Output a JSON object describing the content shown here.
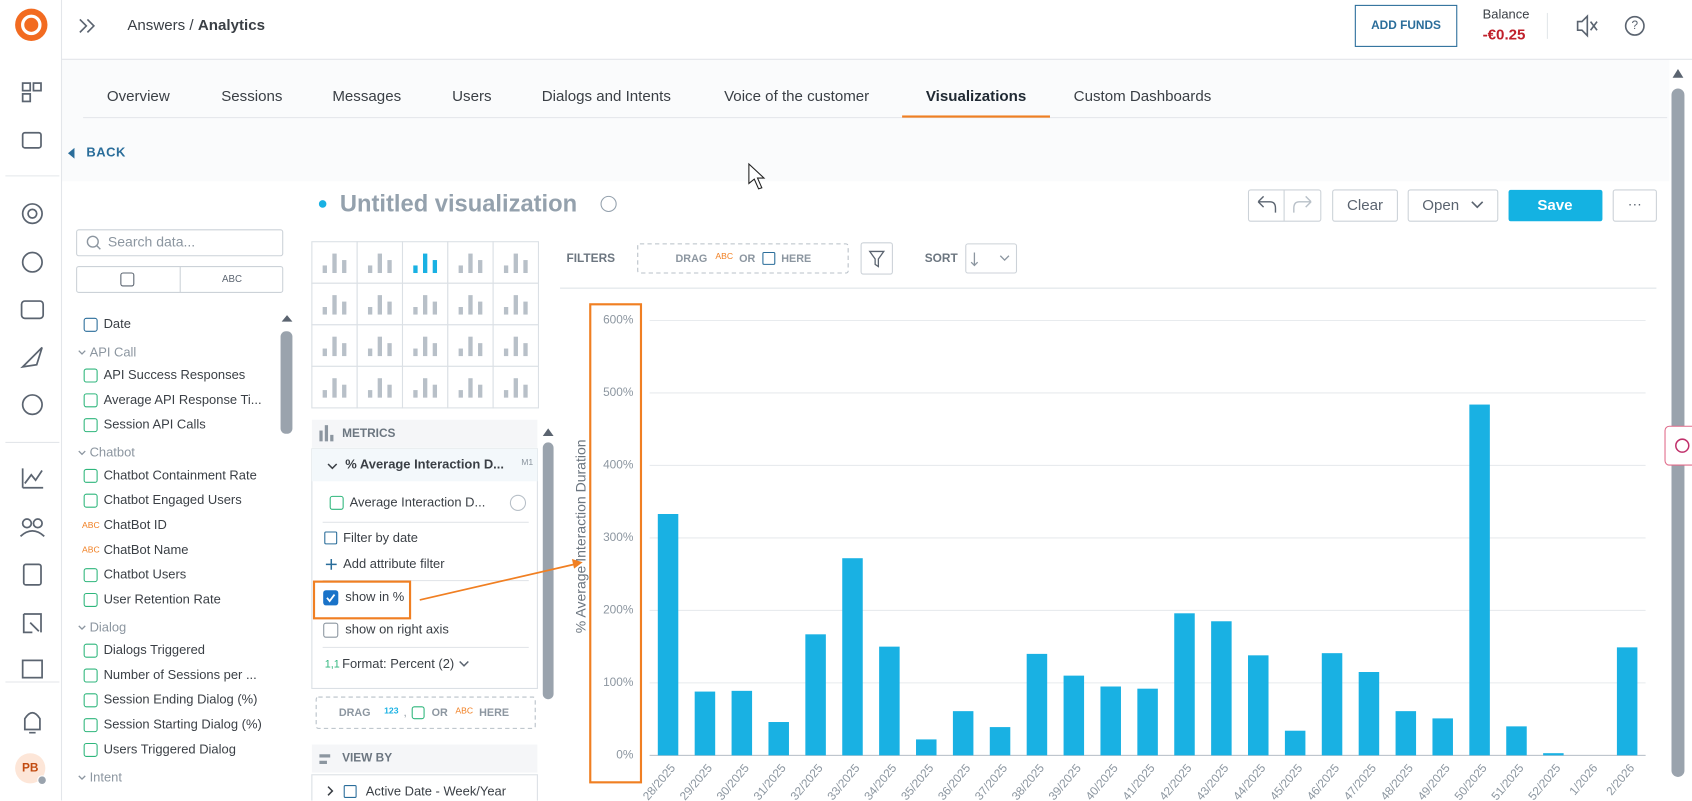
{
  "header": {
    "breadcrumb_parent": "Answers /",
    "breadcrumb_current": "Analytics",
    "add_funds": "ADD FUNDS",
    "balance_label": "Balance",
    "balance": "-€0.25"
  },
  "nav": {
    "avatar": "PB"
  },
  "tabs": [
    "Overview",
    "Sessions",
    "Messages",
    "Users",
    "Dialogs and Intents",
    "Voice of the customer",
    "Visualizations",
    "Custom Dashboards"
  ],
  "active_tab": 6,
  "back": "BACK",
  "title": "Untitled visualization",
  "toolbar": {
    "clear": "Clear",
    "open": "Open",
    "save": "Save",
    "more": "···"
  },
  "data_panel": {
    "search_placeholder": "Search data...",
    "abc_toggle": "ABC",
    "items": [
      {
        "type": "date",
        "label": "Date"
      },
      {
        "type": "group",
        "label": "API Call"
      },
      {
        "type": "metric",
        "label": "API Success Responses"
      },
      {
        "type": "metric",
        "label": "Average API Response Ti..."
      },
      {
        "type": "metric",
        "label": "Session API Calls"
      },
      {
        "type": "group",
        "label": "Chatbot"
      },
      {
        "type": "metric",
        "label": "Chatbot Containment Rate"
      },
      {
        "type": "metric",
        "label": "Chatbot Engaged Users"
      },
      {
        "type": "attribute",
        "icon": "ABC",
        "label": "ChatBot ID"
      },
      {
        "type": "attribute",
        "icon": "ABC",
        "label": "ChatBot Name"
      },
      {
        "type": "metric",
        "label": "Chatbot Users"
      },
      {
        "type": "metric",
        "label": "User Retention Rate"
      },
      {
        "type": "group",
        "label": "Dialog"
      },
      {
        "type": "metric",
        "label": "Dialogs Triggered"
      },
      {
        "type": "metric",
        "label": "Number of Sessions per ..."
      },
      {
        "type": "metric",
        "label": "Session Ending Dialog (%)"
      },
      {
        "type": "metric",
        "label": "Session Starting Dialog (%)"
      },
      {
        "type": "metric",
        "label": "Users Triggered Dialog"
      },
      {
        "type": "group",
        "label": "Intent"
      }
    ]
  },
  "metrics": {
    "header": "METRICS",
    "metric_title": "% Average Interaction D...",
    "metric_id": "M1",
    "measure": "Average Interaction D...",
    "filter_by_date": "Filter by date",
    "add_attribute_filter": "Add attribute filter",
    "show_in_percent": {
      "label": "show in %",
      "checked": true
    },
    "show_on_right_axis": {
      "label": "show on right axis",
      "checked": false
    },
    "format_prefix": "1,1",
    "format": "Format: Percent (2)",
    "drag": {
      "drag": "DRAG",
      "num": "123",
      "comma": ",",
      "or": "OR",
      "abc": "ABC",
      "here": "HERE"
    }
  },
  "view_by": {
    "header": "VIEW BY",
    "item": "Active Date - Week/Year"
  },
  "filters": {
    "label": "FILTERS",
    "drag": "DRAG",
    "abc": "ABC",
    "or": "OR",
    "here": "HERE"
  },
  "sort": {
    "label": "SORT"
  },
  "chart_data": {
    "type": "bar",
    "y_label": "% Average Interaction Duration",
    "color": "#19b1e3",
    "grid": true,
    "categories": [
      "28/2025",
      "29/2025",
      "30/2025",
      "31/2025",
      "32/2025",
      "33/2025",
      "34/2025",
      "35/2025",
      "36/2025",
      "37/2025",
      "38/2025",
      "39/2025",
      "40/2025",
      "41/2025",
      "42/2025",
      "43/2025",
      "44/2025",
      "45/2025",
      "46/2025",
      "47/2025",
      "48/2025",
      "49/2025",
      "50/2025",
      "51/2025",
      "52/2025",
      "1/2026",
      "2/2026"
    ],
    "values": [
      333,
      88,
      89,
      46,
      167,
      272,
      150,
      22,
      61,
      39,
      140,
      110,
      95,
      92,
      196,
      185,
      138,
      34,
      141,
      115,
      61,
      51,
      484,
      40,
      3,
      0,
      149
    ],
    "ylim": [
      0,
      600
    ],
    "yticks": [
      {
        "value": 0,
        "label": "0%"
      },
      {
        "value": 100,
        "label": "100%"
      },
      {
        "value": 200,
        "label": "200%"
      },
      {
        "value": 300,
        "label": "300%"
      },
      {
        "value": 400,
        "label": "400%"
      },
      {
        "value": 500,
        "label": "500%"
      },
      {
        "value": 600,
        "label": "600%"
      }
    ]
  }
}
